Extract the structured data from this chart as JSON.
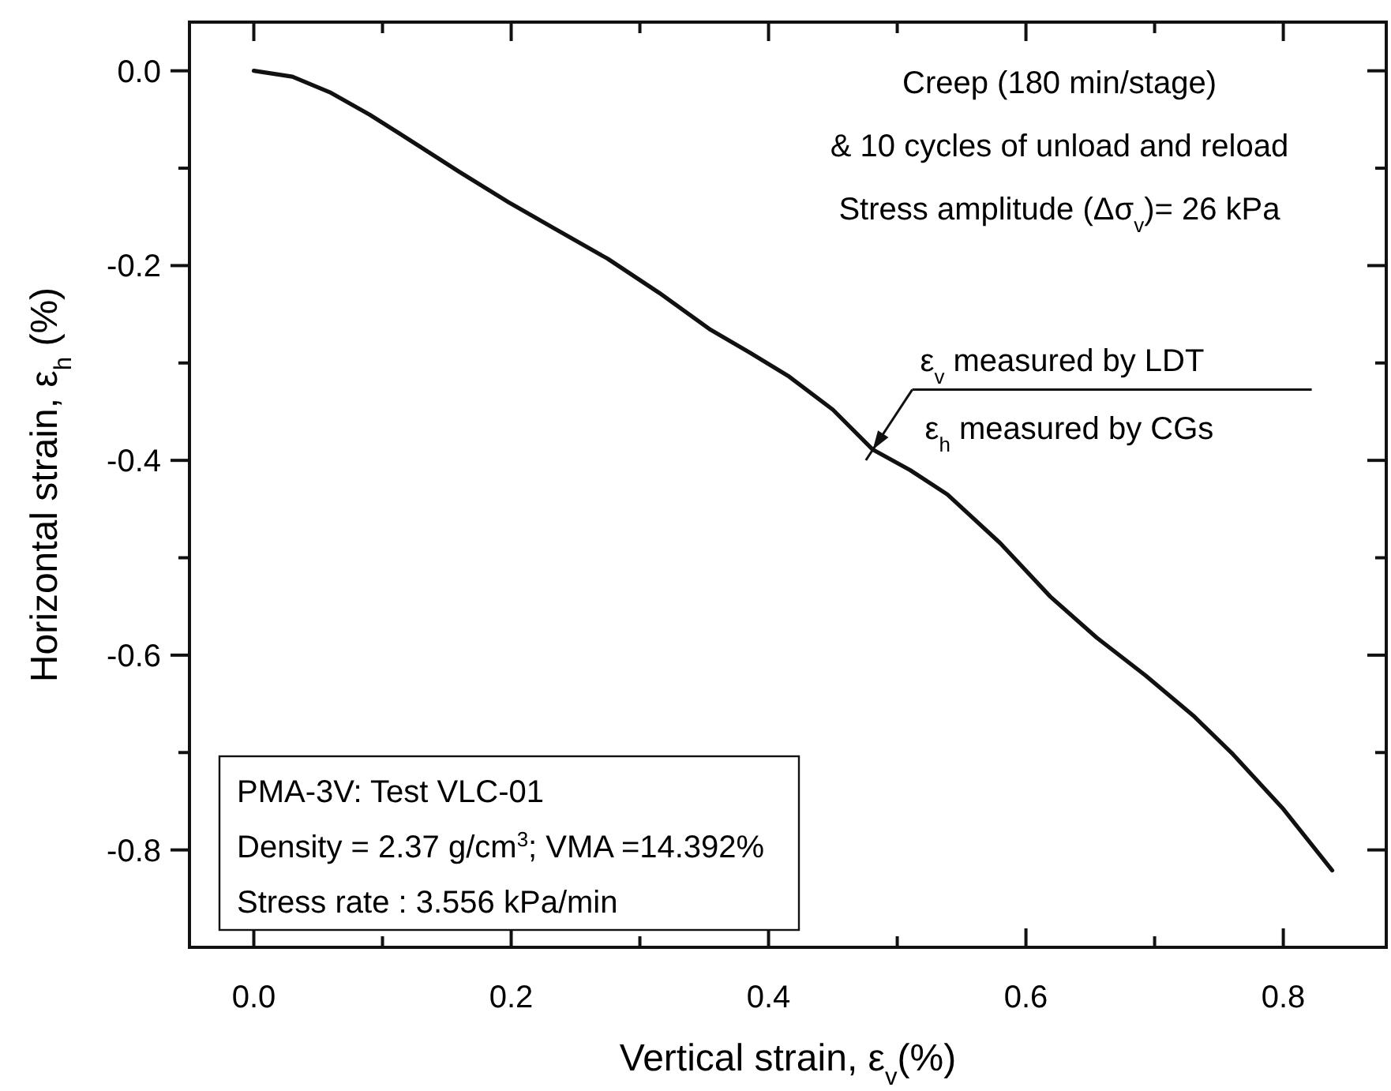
{
  "chart_data": {
    "type": "line",
    "xlabel": "Vertical strain, ε$_{v}$(%)",
    "ylabel": "Horizontal strain, ε$_{h}$ (%)",
    "x": [
      0,
      0.03,
      0.059,
      0.09,
      0.127,
      0.16,
      0.198,
      0.235,
      0.275,
      0.315,
      0.355,
      0.385,
      0.416,
      0.45,
      0.481,
      0.51,
      0.539,
      0.58,
      0.619,
      0.655,
      0.693,
      0.73,
      0.761,
      0.8,
      0.838
    ],
    "series": [
      {
        "color": "#111111",
        "values": [
          0,
          -0.006,
          -0.022,
          -0.045,
          -0.076,
          -0.104,
          -0.135,
          -0.163,
          -0.193,
          -0.228,
          -0.266,
          -0.289,
          -0.314,
          -0.348,
          -0.389,
          -0.41,
          -0.435,
          -0.485,
          -0.54,
          -0.582,
          -0.621,
          -0.662,
          -0.702,
          -0.758,
          -0.821
        ]
      }
    ],
    "xlim": [
      -0.05,
      0.88
    ],
    "ylim": [
      -0.9,
      0.05
    ],
    "xticks": [
      {
        "value": 0,
        "label": "0.0"
      },
      {
        "value": 0.1,
        "label": null
      },
      0.2,
      {
        "value": 0.3,
        "label": null
      },
      0.4,
      {
        "value": 0.5,
        "label": null
      },
      0.6,
      {
        "value": 0.7,
        "label": null
      },
      0.8
    ],
    "yticks": [
      {
        "value": 0,
        "label": "0.0"
      },
      {
        "value": -0.1,
        "label": null
      },
      -0.2,
      {
        "value": -0.3,
        "label": null
      },
      -0.4,
      {
        "value": -0.5,
        "label": null
      },
      -0.6,
      {
        "value": -0.7,
        "label": null
      },
      -0.8
    ],
    "grid": false,
    "marker": "none",
    "line_style": "solid",
    "annotations": [
      "Creep (180 min/stage)",
      "& 10 cycles of unload and reload",
      "Stress amplitude (Δσ$_{v}$)= 26 kPa",
      "ε$_{v}$ measured by LDT",
      {
        "text": "ε$_{h}$ measured by CGs",
        "x": 0.481,
        "y": -0.389
      },
      "PMA-3V: Test VLC-01",
      "Density = 2.37 g/cm$^{3}$; VMA =14.392%",
      "Stress rate : 3.556 kPa/min"
    ]
  }
}
